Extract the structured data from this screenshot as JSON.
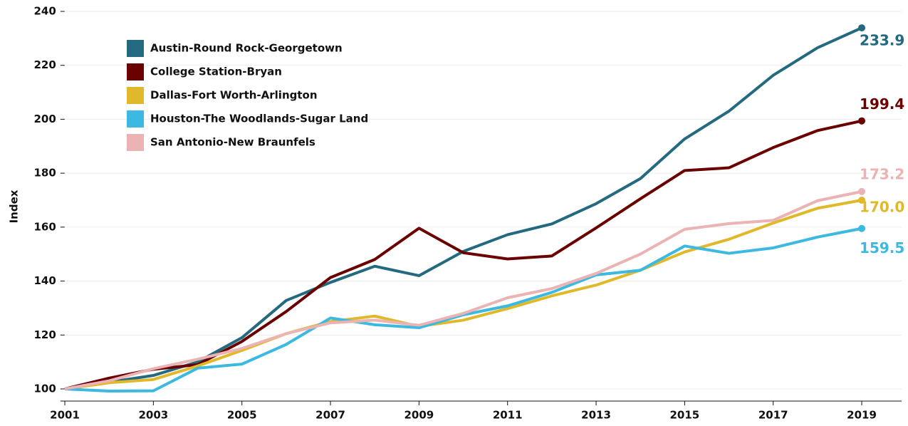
{
  "chart_data": {
    "type": "line",
    "y_label": "Index",
    "x": [
      2001,
      2002,
      2003,
      2004,
      2005,
      2006,
      2007,
      2008,
      2009,
      2010,
      2011,
      2012,
      2013,
      2014,
      2015,
      2016,
      2017,
      2018,
      2019
    ],
    "xlim": [
      2000.9,
      2019.9
    ],
    "xticks": [
      2001,
      2003,
      2005,
      2007,
      2009,
      2011,
      2013,
      2015,
      2017,
      2019
    ],
    "ylim": [
      95.5,
      240
    ],
    "yticks": [
      100,
      120,
      140,
      160,
      180,
      200,
      220,
      240
    ],
    "grid": true,
    "legend": "upper left",
    "series": [
      {
        "name": "Austin-Round Rock-Georgetown",
        "color": "#236a80",
        "values": [
          100,
          102.5,
          105,
          110,
          119,
          132.8,
          139.5,
          145.5,
          142,
          151,
          157.2,
          161.2,
          168.7,
          178,
          192.7,
          203,
          216.3,
          226.5,
          233.9
        ],
        "value_labels": [
          null,
          null,
          null,
          null,
          null,
          null,
          null,
          null,
          null,
          null,
          null,
          null,
          null,
          null,
          null,
          null,
          null,
          null,
          "233.9"
        ]
      },
      {
        "name": "College Station-Bryan",
        "color": "#6b0000",
        "values": [
          100,
          104,
          107.3,
          109,
          117.6,
          128.7,
          141.3,
          148,
          159.6,
          150.5,
          148.2,
          149.3,
          159.7,
          170.5,
          181,
          182,
          189.5,
          195.8,
          199.4
        ],
        "value_labels": [
          null,
          null,
          null,
          null,
          null,
          null,
          null,
          null,
          null,
          null,
          null,
          null,
          null,
          null,
          null,
          null,
          null,
          null,
          "199.4"
        ]
      },
      {
        "name": "Dallas-Fort Worth-Arlington",
        "color": "#e0b92a",
        "values": [
          100,
          102.3,
          103.5,
          108.5,
          114.3,
          120.5,
          125,
          127,
          123.2,
          125.5,
          129.8,
          134.5,
          138.5,
          144,
          150.8,
          155.5,
          161.5,
          167,
          170.0
        ],
        "value_labels": [
          null,
          null,
          null,
          null,
          null,
          null,
          null,
          null,
          null,
          null,
          null,
          null,
          null,
          null,
          null,
          null,
          null,
          null,
          "170.0"
        ]
      },
      {
        "name": "Houston-The Woodlands-Sugar Land",
        "color": "#3bb9e0",
        "values": [
          100,
          99.2,
          99.3,
          107.7,
          109.2,
          116.5,
          126.3,
          123.8,
          122.7,
          127.5,
          130.8,
          135.8,
          142.3,
          144,
          153,
          150.3,
          152.3,
          156.3,
          159.5
        ],
        "value_labels": [
          null,
          null,
          null,
          null,
          null,
          null,
          null,
          null,
          null,
          null,
          null,
          null,
          null,
          null,
          null,
          null,
          null,
          null,
          "159.5"
        ]
      },
      {
        "name": "San Antonio-New Braunfels",
        "color": "#ebb3b3",
        "values": [
          100,
          103,
          107.5,
          111,
          115,
          120.5,
          124.5,
          125.5,
          123.6,
          128,
          133.8,
          137.2,
          142.8,
          150,
          159.2,
          161.3,
          162.5,
          169.8,
          173.2
        ],
        "value_labels": [
          null,
          null,
          null,
          null,
          null,
          null,
          null,
          null,
          null,
          null,
          null,
          null,
          null,
          null,
          null,
          null,
          null,
          null,
          "173.2"
        ]
      }
    ]
  }
}
